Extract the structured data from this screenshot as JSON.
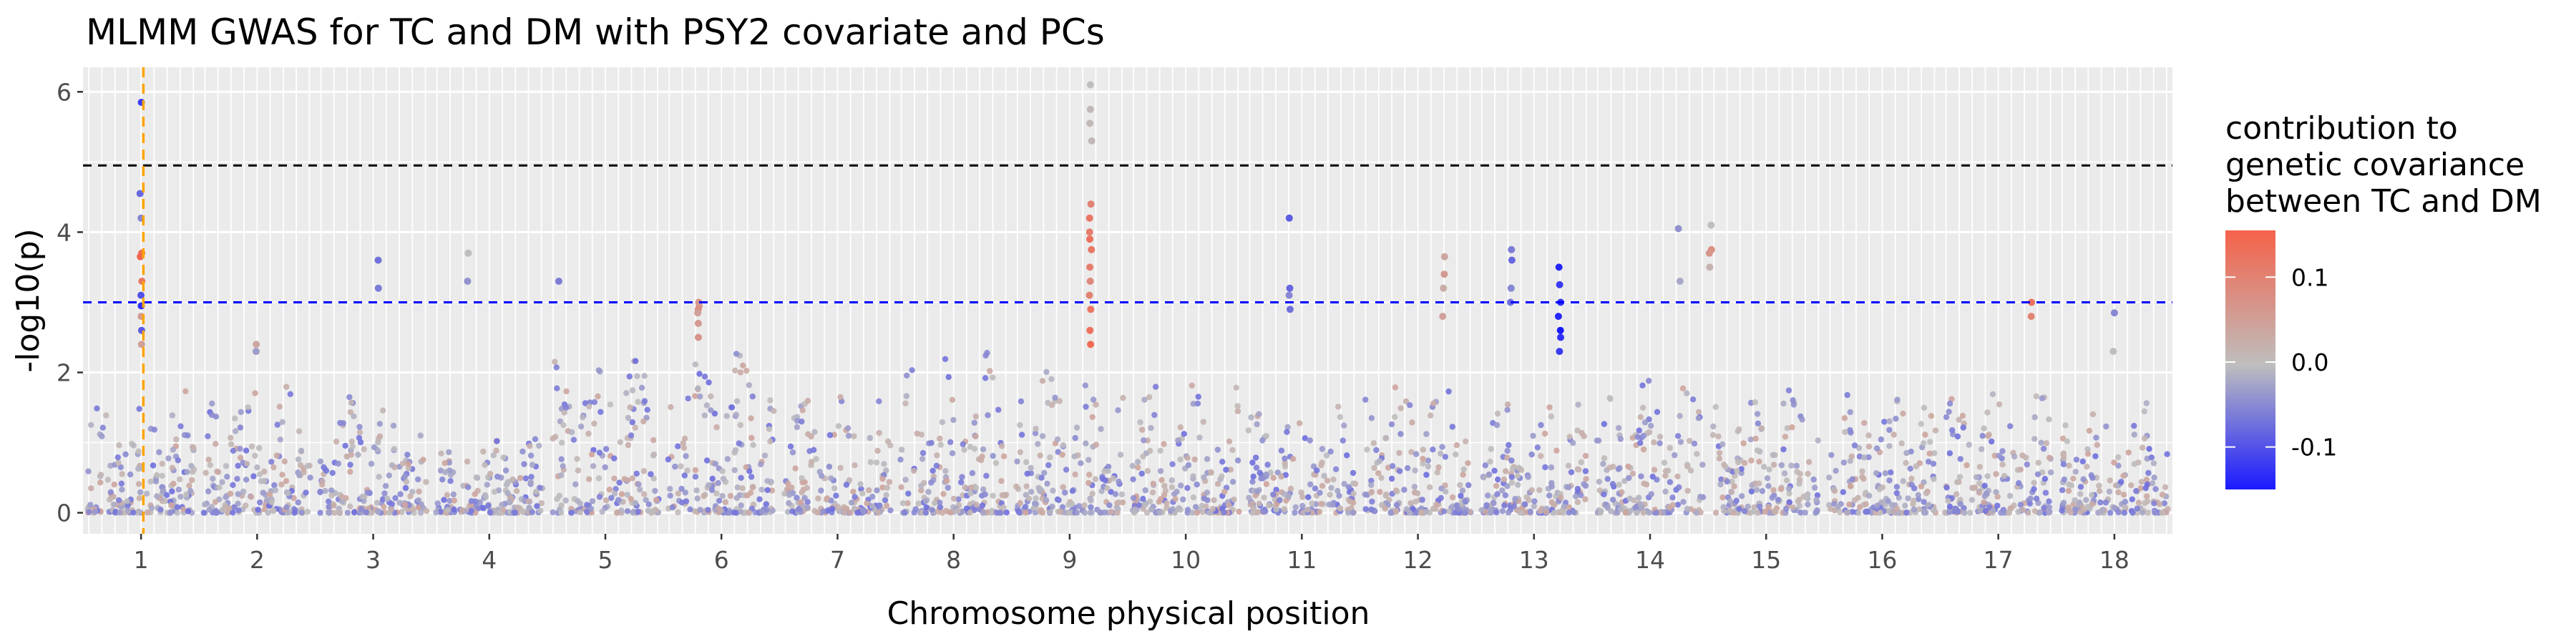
{
  "chart_data": {
    "type": "scatter",
    "title": "MLMM GWAS for TC and DM with PSY2 covariate and PCs",
    "xlabel": "Chromosome physical position",
    "ylabel": "-log10(p)",
    "categories": [
      "1",
      "2",
      "3",
      "4",
      "5",
      "6",
      "7",
      "8",
      "9",
      "10",
      "11",
      "12",
      "13",
      "14",
      "15",
      "16",
      "17",
      "18"
    ],
    "ylim": [
      -0.3,
      6.35
    ],
    "y_ticks": [
      0,
      2,
      4,
      6
    ],
    "grid": true,
    "thresholds": [
      {
        "y": 4.95,
        "color": "#000000",
        "style": "dashed"
      },
      {
        "y": 3.0,
        "color": "#0000ff",
        "style": "dashed"
      }
    ],
    "vertical_marker": {
      "chromosome": "1",
      "position": 0.52,
      "color": "#ffa500",
      "style": "dashed"
    },
    "legend": {
      "title_lines": [
        "contribution to",
        "genetic covariance",
        "between TC and DM"
      ],
      "placement": "right",
      "ticks": [
        {
          "value": 0.1,
          "label": "0.1"
        },
        {
          "value": 0.0,
          "label": "0.0"
        },
        {
          "value": -0.1,
          "label": "-0.1"
        }
      ],
      "range": [
        -0.15,
        0.155
      ],
      "colors": {
        "low": "#1a1aff",
        "mid": "#bebebe",
        "high": "#f5624a"
      }
    },
    "peaks": [
      {
        "chromosome": "1",
        "position": 0.5,
        "max_y": 5.85,
        "values": [
          5.85,
          4.55,
          4.2,
          3.7,
          3.65,
          3.3,
          3.1,
          2.95,
          2.8,
          2.6,
          2.4
        ],
        "colors": [
          -0.12,
          -0.08,
          -0.05,
          0.14,
          0.15,
          0.12,
          -0.1,
          -0.13,
          0.06,
          -0.09,
          0.05
        ]
      },
      {
        "chromosome": "2",
        "position": 0.5,
        "max_y": 2.4,
        "values": [
          2.4,
          2.3
        ],
        "colors": [
          0.04,
          -0.03
        ]
      },
      {
        "chromosome": "3",
        "position": 0.55,
        "max_y": 3.6,
        "values": [
          3.6,
          3.2
        ],
        "colors": [
          -0.07,
          -0.06
        ]
      },
      {
        "chromosome": "4",
        "position": 0.32,
        "max_y": 3.7,
        "values": [
          3.7,
          3.3
        ],
        "colors": [
          0.0,
          -0.04
        ]
      },
      {
        "chromosome": "5",
        "position": 0.1,
        "max_y": 3.3,
        "values": [
          3.3
        ],
        "colors": [
          -0.06
        ]
      },
      {
        "chromosome": "6",
        "position": 0.3,
        "max_y": 3.0,
        "values": [
          3.0,
          2.95,
          2.9,
          2.85,
          2.7,
          2.5
        ],
        "colors": [
          0.07,
          0.06,
          0.08,
          0.05,
          0.06,
          0.07
        ]
      },
      {
        "chromosome": "9",
        "position": 0.68,
        "max_y": 6.1,
        "values": [
          6.1,
          5.75,
          5.55,
          5.3,
          4.4,
          4.2,
          4.0,
          3.9,
          3.75,
          3.5,
          3.3,
          3.1,
          2.9,
          2.6,
          2.4
        ],
        "colors": [
          0.0,
          0.01,
          0.01,
          0.01,
          0.1,
          0.12,
          0.11,
          0.13,
          0.12,
          0.11,
          0.09,
          0.1,
          0.12,
          0.13,
          0.14
        ]
      },
      {
        "chromosome": "11",
        "position": 0.4,
        "max_y": 4.2,
        "values": [
          4.2,
          3.2,
          3.1,
          2.9
        ],
        "colors": [
          -0.09,
          -0.08,
          -0.05,
          -0.07
        ]
      },
      {
        "chromosome": "12",
        "position": 0.72,
        "max_y": 3.65,
        "values": [
          3.65,
          3.4,
          3.2,
          2.8
        ],
        "colors": [
          0.04,
          0.06,
          0.03,
          0.05
        ]
      },
      {
        "chromosome": "13",
        "position": 0.3,
        "max_y": 3.75,
        "values": [
          3.75,
          3.6,
          3.2,
          3.0
        ],
        "colors": [
          -0.06,
          -0.08,
          -0.05,
          -0.07
        ]
      },
      {
        "chromosome": "13",
        "position": 0.72,
        "max_y": 3.5,
        "values": [
          3.5,
          3.25,
          3.0,
          2.8,
          2.6,
          2.5,
          2.3
        ],
        "colors": [
          -0.14,
          -0.12,
          -0.13,
          -0.14,
          -0.15,
          -0.13,
          -0.12
        ]
      },
      {
        "chromosome": "14",
        "position": 0.75,
        "max_y": 4.05,
        "values": [
          4.05,
          3.3
        ],
        "colors": [
          -0.04,
          -0.02
        ]
      },
      {
        "chromosome": "15",
        "position": 0.02,
        "max_y": 4.1,
        "values": [
          4.1,
          3.75,
          3.7,
          3.5
        ],
        "colors": [
          0.0,
          0.08,
          0.07,
          0.02
        ]
      },
      {
        "chromosome": "17",
        "position": 0.78,
        "max_y": 3.0,
        "values": [
          3.0,
          2.8
        ],
        "colors": [
          0.13,
          0.1
        ]
      },
      {
        "chromosome": "18",
        "position": 0.5,
        "max_y": 2.85,
        "values": [
          2.85,
          2.3
        ],
        "colors": [
          -0.05,
          0.0
        ]
      }
    ],
    "background_max": [
      1.9,
      2.0,
      1.8,
      1.2,
      2.3,
      2.4,
      1.7,
      2.3,
      2.2,
      2.0,
      1.6,
      2.0,
      1.8,
      2.0,
      1.8,
      1.9,
      1.8,
      1.7
    ]
  }
}
